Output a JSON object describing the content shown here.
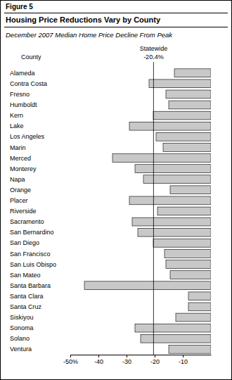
{
  "chart_data": {
    "type": "bar",
    "figure_label": "Figure 5",
    "title": "Housing Price Reductions Vary by County",
    "subtitle": "December 2007 Median Home Price Decline From Peak",
    "ylabel": "County",
    "orientation": "horizontal",
    "color": "#c8c8c8",
    "categories": [
      "Alameda",
      "Contra Costa",
      "Fresno",
      "Humboldt",
      "Kern",
      "Lake",
      "Los Angeles",
      "Marin",
      "Merced",
      "Monterey",
      "Napa",
      "Orange",
      "Placer",
      "Riverside",
      "Sacramento",
      "San Bernardino",
      "San Diego",
      "San Francisco",
      "San Luis Obispo",
      "San Mateo",
      "Santa Barbara",
      "Santa Clara",
      "Santa Cruz",
      "Siskiyou",
      "Sonoma",
      "Solano",
      "Ventura"
    ],
    "values": [
      -13,
      -22,
      -16,
      -15,
      -20.5,
      -29,
      -19.5,
      -17,
      -35,
      -27,
      -24,
      -14.5,
      -29,
      -19,
      -28,
      -26,
      -20.5,
      -16.5,
      -16,
      -14.5,
      -45,
      -8,
      -8,
      -12.5,
      -27,
      -25,
      -15
    ],
    "xlim": [
      -50,
      0
    ],
    "xticks": [
      {
        "value": -50,
        "label": "-50%"
      },
      -40,
      -30,
      -20,
      -10
    ],
    "reference_line": {
      "label": "Statewide",
      "value": -20.4,
      "value_label": "-20.4%"
    }
  }
}
